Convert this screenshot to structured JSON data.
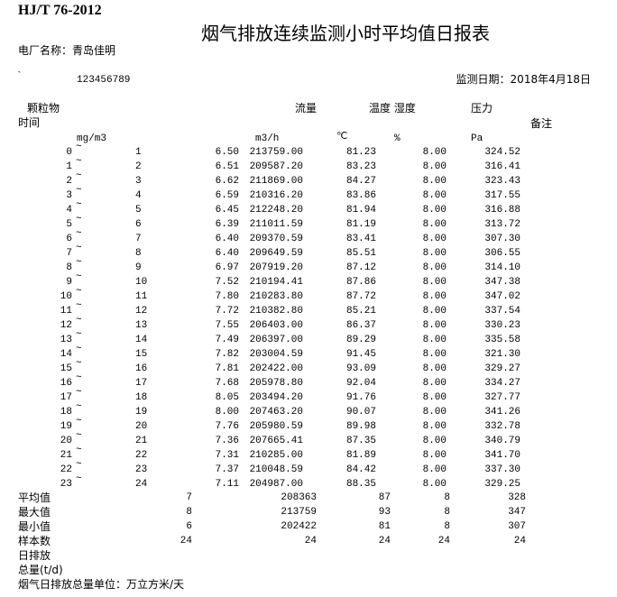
{
  "header": {
    "standard": "HJ/T 76-2012",
    "title": "烟气排放连续监测小时平均值日报表",
    "plant_label": "电厂名称：青岛佳明",
    "mark": "`",
    "station_id": "123456789",
    "date_label": "监测日期：2018年4月18日"
  },
  "columns": {
    "dust": "颗粒物",
    "flow": "流量",
    "temp_humidity": "温度 湿度",
    "pressure": "压力",
    "time": "时间",
    "remark": "备注",
    "dust_unit": "mg/m3",
    "flow_unit": "m3/h",
    "temp_unit": "℃",
    "humidity_unit": "%",
    "pressure_unit": "Pa"
  },
  "separator": "~",
  "rows": [
    {
      "start": "0",
      "end": "1",
      "dust": "6.50",
      "flow": "213759.00",
      "temp": "81.23",
      "humidity": "8.00",
      "pressure": "324.52"
    },
    {
      "start": "1",
      "end": "2",
      "dust": "6.51",
      "flow": "209587.20",
      "temp": "83.23",
      "humidity": "8.00",
      "pressure": "316.41"
    },
    {
      "start": "2",
      "end": "3",
      "dust": "6.62",
      "flow": "211869.00",
      "temp": "84.27",
      "humidity": "8.00",
      "pressure": "323.43"
    },
    {
      "start": "3",
      "end": "4",
      "dust": "6.59",
      "flow": "210316.20",
      "temp": "83.86",
      "humidity": "8.00",
      "pressure": "317.55"
    },
    {
      "start": "4",
      "end": "5",
      "dust": "6.45",
      "flow": "212248.20",
      "temp": "81.94",
      "humidity": "8.00",
      "pressure": "316.88"
    },
    {
      "start": "5",
      "end": "6",
      "dust": "6.39",
      "flow": "211011.59",
      "temp": "81.19",
      "humidity": "8.00",
      "pressure": "313.72"
    },
    {
      "start": "6",
      "end": "7",
      "dust": "6.40",
      "flow": "209370.59",
      "temp": "83.41",
      "humidity": "8.00",
      "pressure": "307.30"
    },
    {
      "start": "7",
      "end": "8",
      "dust": "6.40",
      "flow": "209649.59",
      "temp": "85.51",
      "humidity": "8.00",
      "pressure": "306.55"
    },
    {
      "start": "8",
      "end": "9",
      "dust": "6.97",
      "flow": "207919.20",
      "temp": "87.12",
      "humidity": "8.00",
      "pressure": "314.10"
    },
    {
      "start": "9",
      "end": "10",
      "dust": "7.52",
      "flow": "210194.41",
      "temp": "87.86",
      "humidity": "8.00",
      "pressure": "347.38"
    },
    {
      "start": "10",
      "end": "11",
      "dust": "7.80",
      "flow": "210283.80",
      "temp": "87.72",
      "humidity": "8.00",
      "pressure": "347.02"
    },
    {
      "start": "11",
      "end": "12",
      "dust": "7.72",
      "flow": "210382.80",
      "temp": "85.21",
      "humidity": "8.00",
      "pressure": "337.54"
    },
    {
      "start": "12",
      "end": "13",
      "dust": "7.55",
      "flow": "206403.00",
      "temp": "86.37",
      "humidity": "8.00",
      "pressure": "330.23"
    },
    {
      "start": "13",
      "end": "14",
      "dust": "7.49",
      "flow": "206397.00",
      "temp": "89.29",
      "humidity": "8.00",
      "pressure": "335.58"
    },
    {
      "start": "14",
      "end": "15",
      "dust": "7.82",
      "flow": "203004.59",
      "temp": "91.45",
      "humidity": "8.00",
      "pressure": "321.30"
    },
    {
      "start": "15",
      "end": "16",
      "dust": "7.81",
      "flow": "202422.00",
      "temp": "93.09",
      "humidity": "8.00",
      "pressure": "329.27"
    },
    {
      "start": "16",
      "end": "17",
      "dust": "7.68",
      "flow": "205978.80",
      "temp": "92.04",
      "humidity": "8.00",
      "pressure": "334.27"
    },
    {
      "start": "17",
      "end": "18",
      "dust": "8.05",
      "flow": "203494.20",
      "temp": "91.76",
      "humidity": "8.00",
      "pressure": "327.77"
    },
    {
      "start": "18",
      "end": "19",
      "dust": "8.00",
      "flow": "207463.20",
      "temp": "90.07",
      "humidity": "8.00",
      "pressure": "341.26"
    },
    {
      "start": "19",
      "end": "20",
      "dust": "7.76",
      "flow": "205980.59",
      "temp": "89.98",
      "humidity": "8.00",
      "pressure": "332.78"
    },
    {
      "start": "20",
      "end": "21",
      "dust": "7.36",
      "flow": "207665.41",
      "temp": "87.35",
      "humidity": "8.00",
      "pressure": "340.79"
    },
    {
      "start": "21",
      "end": "22",
      "dust": "7.31",
      "flow": "210285.00",
      "temp": "81.89",
      "humidity": "8.00",
      "pressure": "341.70"
    },
    {
      "start": "22",
      "end": "23",
      "dust": "7.37",
      "flow": "210048.59",
      "temp": "84.42",
      "humidity": "8.00",
      "pressure": "337.30"
    },
    {
      "start": "23",
      "end": "24",
      "dust": "7.11",
      "flow": "204987.00",
      "temp": "88.35",
      "humidity": "8.00",
      "pressure": "329.25"
    }
  ],
  "summary": [
    {
      "label": "平均值",
      "dust": "7",
      "flow": "208363",
      "temp": "87",
      "humidity": "8",
      "pressure": "328"
    },
    {
      "label": "最大值",
      "dust": "8",
      "flow": "213759",
      "temp": "93",
      "humidity": "8",
      "pressure": "347"
    },
    {
      "label": "最小值",
      "dust": "6",
      "flow": "202422",
      "temp": "81",
      "humidity": "8",
      "pressure": "307"
    },
    {
      "label": "样本数",
      "dust": "24",
      "flow": "24",
      "temp": "24",
      "humidity": "24",
      "pressure": "24"
    }
  ],
  "footer": {
    "daily_emission": "日排放",
    "total": "总量(t/d)",
    "unit_note": "烟气日排放总量单位：万立方米/天"
  }
}
